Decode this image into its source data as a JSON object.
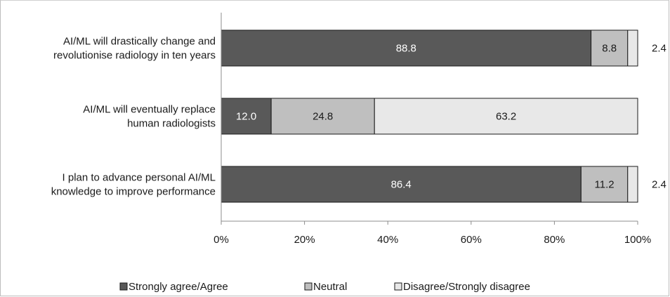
{
  "chart_data": {
    "type": "bar",
    "orientation": "horizontal",
    "stacked": "percent",
    "categories": [
      [
        "AI/ML will drastically change and",
        "revolutionise radiology in ten years"
      ],
      [
        "AI/ML will eventually replace",
        "human radiologists"
      ],
      [
        "I plan to advance personal AI/ML",
        "knowledge to improve performance"
      ]
    ],
    "series": [
      {
        "name": "Strongly agree/Agree",
        "values": [
          88.8,
          12.0,
          86.4
        ],
        "labels": [
          "88.8",
          "12.0",
          "86.4"
        ],
        "color": "#595959",
        "label_color": "#ffffff"
      },
      {
        "name": "Neutral",
        "values": [
          8.8,
          24.8,
          11.2
        ],
        "labels": [
          "8.8",
          "24.8",
          "11.2"
        ],
        "color": "#bfbfbf",
        "label_color": "#1a1a1a"
      },
      {
        "name": "Disagree/Strongly disagree",
        "values": [
          2.4,
          63.2,
          2.4
        ],
        "labels": [
          "2.4",
          "63.2",
          "2.4"
        ],
        "color": "#e8e8e8",
        "label_color": "#1a1a1a"
      }
    ],
    "x_ticks": [
      "0%",
      "20%",
      "40%",
      "60%",
      "80%",
      "100%"
    ],
    "xlim": [
      0,
      100
    ],
    "grid": false,
    "legend_position": "bottom"
  }
}
